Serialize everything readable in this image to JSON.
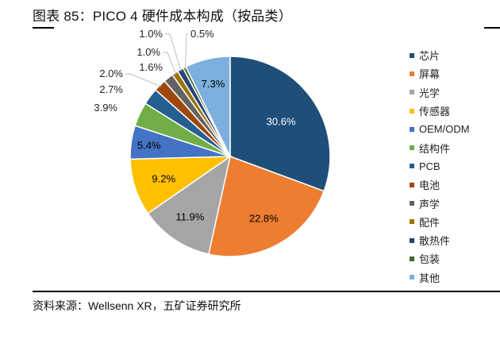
{
  "header": {
    "title": "图表 85：PICO 4 硬件成本构成（按品类）"
  },
  "footer": {
    "source": "资料来源：Wellsenn XR，五矿证券研究所"
  },
  "chart_data": {
    "type": "pie",
    "title": "PICO 4 硬件成本构成（按品类）",
    "start_angle": "12 o'clock, clockwise",
    "legend_position": "right",
    "categories": [
      "芯片",
      "屏幕",
      "光学",
      "传感器",
      "OEM/ODM",
      "结构件",
      "PCB",
      "电池",
      "声学",
      "配件",
      "散热件",
      "包装",
      "其他"
    ],
    "values": [
      30.6,
      22.8,
      11.9,
      9.2,
      5.4,
      3.9,
      2.7,
      2.0,
      1.6,
      1.0,
      1.0,
      0.5,
      7.3
    ],
    "labels": [
      "30.6%",
      "22.8%",
      "11.9%",
      "9.2%",
      "5.4%",
      "3.9%",
      "2.7%",
      "2.0%",
      "1.6%",
      "1.0%",
      "1.0%",
      "0.5%",
      "7.3%"
    ],
    "colors": [
      "#1F4E79",
      "#ED7D31",
      "#A5A5A5",
      "#FFC000",
      "#4472C4",
      "#70AD47",
      "#255E91",
      "#9E480E",
      "#636363",
      "#997300",
      "#264478",
      "#43682B",
      "#7CAFDD"
    ],
    "label_colors": [
      "#ffffff",
      "#000000",
      "#000000",
      "#000000",
      "#000000",
      "#000000",
      "#000000",
      "#000000",
      "#000000",
      "#000000",
      "#000000",
      "#000000",
      "#000000"
    ],
    "unit": "%"
  }
}
